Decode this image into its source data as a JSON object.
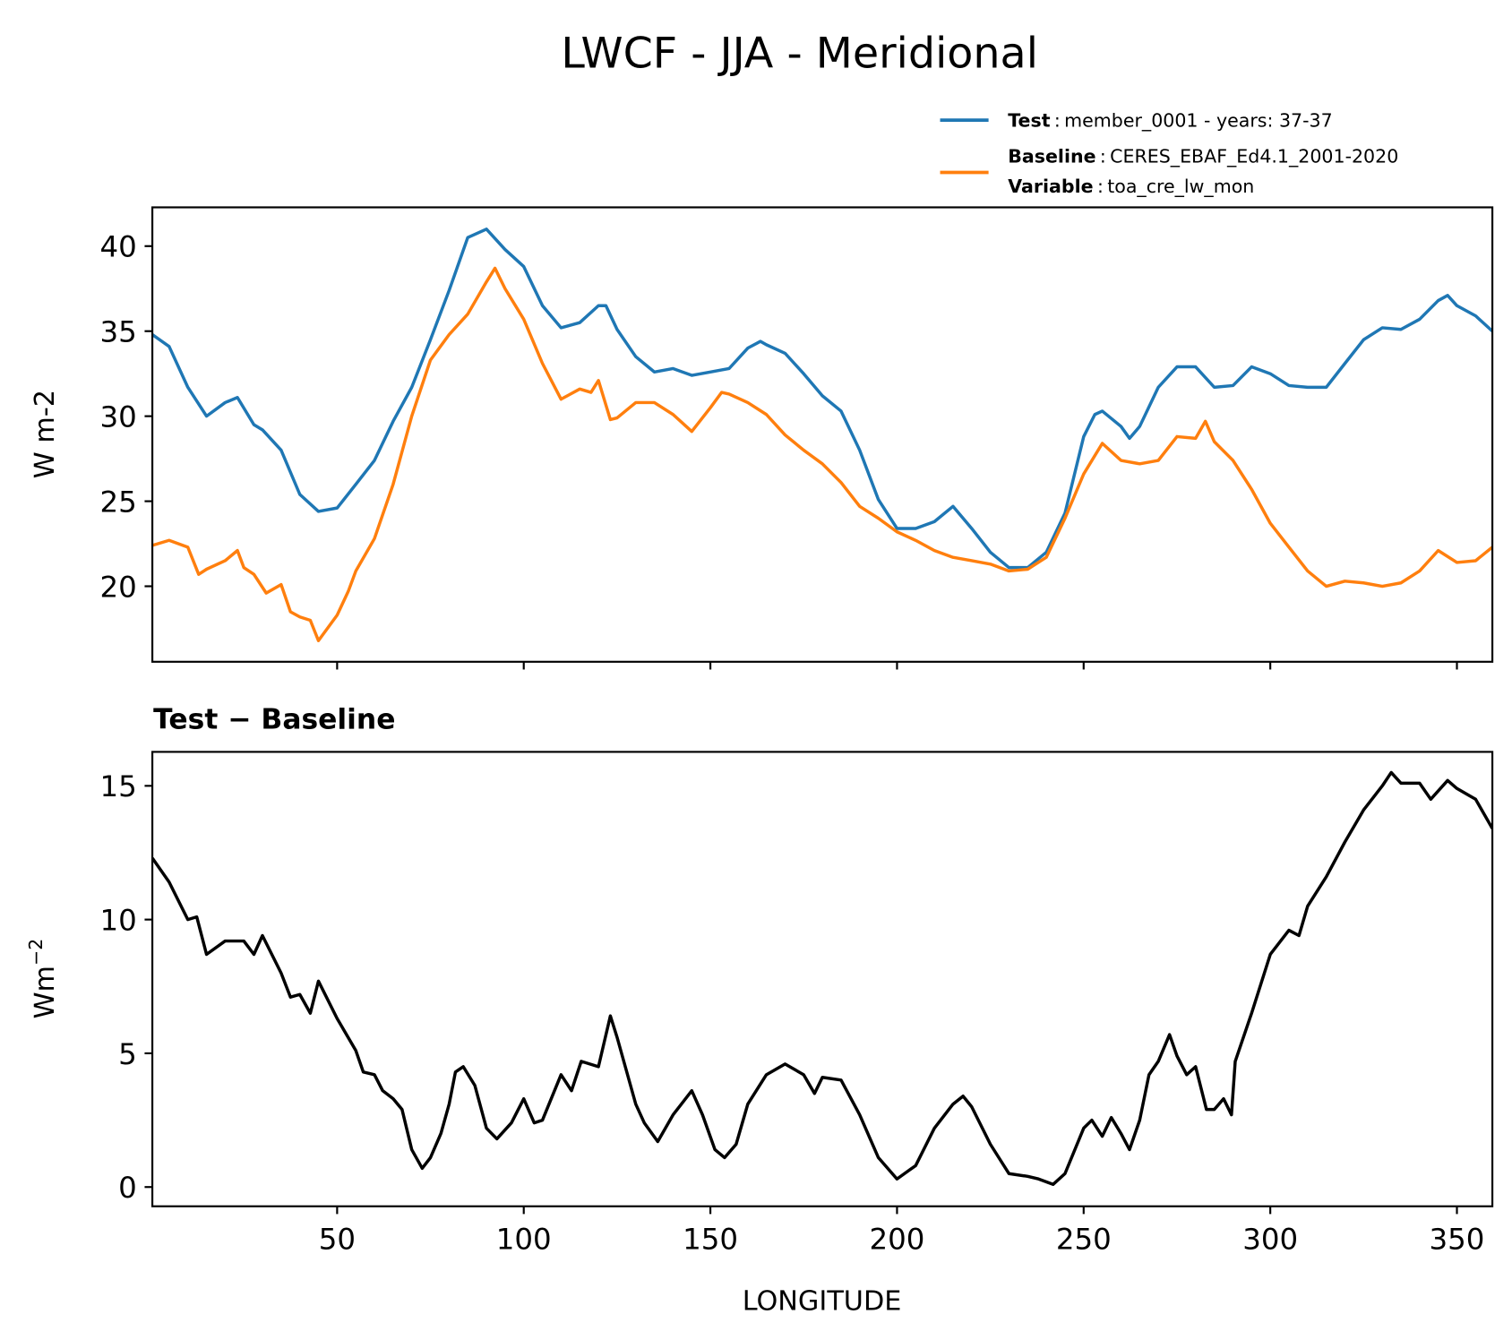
{
  "title": "LWCF - JJA - Meridional",
  "legend": {
    "test_key": "Test",
    "test_value": "member_0001 - years: 37-37",
    "baseline_key": "Baseline",
    "baseline_value": "CERES_EBAF_Ed4.1_2001-2020",
    "variable_key": "Variable",
    "variable_value": "toa_cre_lw_mon",
    "sep": ":"
  },
  "colors": {
    "test": "#1f77b4",
    "baseline": "#ff7f0e",
    "diff": "#000000"
  },
  "chart_data": [
    {
      "type": "line",
      "title": "",
      "xlabel": "",
      "ylabel": "W m-2",
      "xlim": [
        0.5,
        359.5
      ],
      "ylim": [
        15.56,
        42.28
      ],
      "xticks": [
        50,
        100,
        150,
        200,
        250,
        300,
        350
      ],
      "xtick_labels_shown": false,
      "yticks": [
        20,
        25,
        30,
        35,
        40
      ],
      "ytick_labels": [
        "20",
        "25",
        "30",
        "35",
        "40"
      ],
      "legend_position": "above-right",
      "series": [
        {
          "name": "Test",
          "color": "#1f77b4",
          "x": [
            0.5,
            5,
            10,
            15,
            20,
            23.3,
            27.7,
            30,
            35,
            40,
            45,
            50,
            55,
            60,
            65,
            70,
            75,
            80,
            85,
            90,
            95,
            100,
            105,
            110,
            115,
            120,
            122,
            125,
            130,
            135,
            140,
            145,
            150,
            155,
            160,
            163.4,
            165,
            170,
            175,
            180,
            185,
            190,
            195,
            200,
            205,
            210,
            215,
            220,
            225,
            230,
            235,
            240,
            245,
            250,
            253,
            255,
            260,
            262.3,
            265,
            270,
            275,
            280,
            285,
            290,
            295,
            300,
            305,
            310,
            315,
            320,
            325,
            330,
            335,
            340,
            345,
            347.5,
            350,
            355,
            359.5
          ],
          "values": [
            34.8,
            34.1,
            31.7,
            30.0,
            30.8,
            31.1,
            29.5,
            29.2,
            28.0,
            25.4,
            24.4,
            24.6,
            26.0,
            27.4,
            29.7,
            31.7,
            34.5,
            37.4,
            40.5,
            41.0,
            39.8,
            38.8,
            36.5,
            35.2,
            35.5,
            36.5,
            36.5,
            35.1,
            33.5,
            32.6,
            32.8,
            32.4,
            32.6,
            32.8,
            34.0,
            34.4,
            34.2,
            33.7,
            32.5,
            31.2,
            30.3,
            28.0,
            25.1,
            23.4,
            23.4,
            23.8,
            24.7,
            23.4,
            22.0,
            21.1,
            21.1,
            22.0,
            24.3,
            28.8,
            30.1,
            30.3,
            29.4,
            28.7,
            29.4,
            31.7,
            32.9,
            32.9,
            31.7,
            31.8,
            32.9,
            32.5,
            31.8,
            31.7,
            31.7,
            33.1,
            34.5,
            35.2,
            35.1,
            35.7,
            36.8,
            37.1,
            36.5,
            35.9,
            35.0
          ]
        },
        {
          "name": "Baseline",
          "color": "#ff7f0e",
          "x": [
            0.5,
            5,
            10,
            12.9,
            15,
            20,
            23.3,
            25,
            27.7,
            31,
            35,
            37.5,
            40,
            42.8,
            45,
            50,
            53,
            55,
            60,
            65,
            70,
            75,
            80,
            85,
            90,
            92.3,
            95,
            100,
            105,
            110,
            115,
            118,
            120,
            123.2,
            125,
            130,
            135,
            140,
            145,
            150,
            153,
            155,
            160,
            165,
            170,
            175,
            180,
            185,
            190,
            195,
            200,
            205,
            210,
            215,
            220,
            225,
            230,
            235,
            240,
            245,
            250,
            255,
            260,
            265,
            270,
            275,
            280,
            282.6,
            285,
            290,
            295,
            300,
            305,
            310,
            315,
            320,
            325,
            330,
            335,
            340,
            345,
            350,
            355,
            359.5
          ],
          "values": [
            22.4,
            22.7,
            22.3,
            20.7,
            21.0,
            21.5,
            22.1,
            21.1,
            20.7,
            19.6,
            20.1,
            18.5,
            18.2,
            18.0,
            16.8,
            18.3,
            19.7,
            20.9,
            22.8,
            26.0,
            30.0,
            33.3,
            34.8,
            36.0,
            37.9,
            38.7,
            37.5,
            35.7,
            33.1,
            31.0,
            31.6,
            31.4,
            32.1,
            29.8,
            29.9,
            30.8,
            30.8,
            30.1,
            29.1,
            30.5,
            31.4,
            31.3,
            30.8,
            30.1,
            28.9,
            28.0,
            27.2,
            26.1,
            24.7,
            24.0,
            23.2,
            22.7,
            22.1,
            21.7,
            21.5,
            21.3,
            20.9,
            21.0,
            21.7,
            24.0,
            26.6,
            28.4,
            27.4,
            27.2,
            27.4,
            28.8,
            28.7,
            29.7,
            28.5,
            27.4,
            25.7,
            23.7,
            22.3,
            20.9,
            20.0,
            20.3,
            20.2,
            20.0,
            20.2,
            20.9,
            22.1,
            21.4,
            21.5,
            22.3
          ]
        }
      ]
    },
    {
      "type": "line",
      "title": "Test − Baseline",
      "xlabel": "LONGITUDE",
      "ylabel_base": "Wm",
      "ylabel_sup": "−2",
      "xlim": [
        0.5,
        359.5
      ],
      "ylim": [
        -0.72,
        16.27
      ],
      "xticks": [
        50,
        100,
        150,
        200,
        250,
        300,
        350
      ],
      "xtick_labels": [
        "50",
        "100",
        "150",
        "200",
        "250",
        "300",
        "350"
      ],
      "yticks": [
        0,
        5,
        10,
        15
      ],
      "ytick_labels": [
        "0",
        "5",
        "10",
        "15"
      ],
      "series": [
        {
          "name": "Test - Baseline",
          "color": "#000000",
          "x": [
            0.5,
            5,
            10,
            12.4,
            15,
            20,
            25,
            27.7,
            30,
            35,
            37.5,
            40,
            42.8,
            45,
            50,
            55,
            57,
            60,
            62.2,
            65,
            67.4,
            70,
            72.8,
            75,
            77.8,
            80,
            81.7,
            83.8,
            86.9,
            90,
            92.8,
            96.7,
            100,
            102.8,
            105,
            110,
            112.8,
            115.4,
            120,
            123.2,
            125,
            130,
            132.3,
            135.9,
            140,
            145,
            147.9,
            151.2,
            153.8,
            156.9,
            160,
            165,
            170,
            175,
            177.9,
            180,
            185,
            190,
            195,
            200,
            205,
            210,
            215,
            217.7,
            220,
            225,
            230,
            235,
            237.9,
            241.8,
            245,
            250,
            252.2,
            255,
            257.4,
            260,
            262.3,
            265,
            267.5,
            270,
            273,
            275,
            277.6,
            280,
            282.9,
            285,
            287.5,
            289.6,
            290.6,
            295,
            300,
            305,
            307.7,
            310,
            315,
            320,
            325,
            330,
            332.4,
            335,
            340,
            343,
            347.5,
            350,
            355,
            359.5
          ],
          "values": [
            12.3,
            11.4,
            10.0,
            10.1,
            8.7,
            9.2,
            9.2,
            8.7,
            9.4,
            8.0,
            7.1,
            7.2,
            6.5,
            7.7,
            6.3,
            5.1,
            4.3,
            4.2,
            3.6,
            3.3,
            2.9,
            1.4,
            0.7,
            1.1,
            2.0,
            3.1,
            4.3,
            4.5,
            3.8,
            2.2,
            1.8,
            2.4,
            3.3,
            2.4,
            2.5,
            4.2,
            3.6,
            4.7,
            4.5,
            6.4,
            5.6,
            3.1,
            2.4,
            1.7,
            2.7,
            3.6,
            2.7,
            1.4,
            1.1,
            1.6,
            3.1,
            4.2,
            4.6,
            4.2,
            3.5,
            4.1,
            4.0,
            2.7,
            1.1,
            0.3,
            0.8,
            2.2,
            3.1,
            3.4,
            3.0,
            1.6,
            0.5,
            0.4,
            0.3,
            0.1,
            0.5,
            2.2,
            2.5,
            1.9,
            2.6,
            2.0,
            1.4,
            2.5,
            4.2,
            4.7,
            5.7,
            4.9,
            4.2,
            4.5,
            2.9,
            2.9,
            3.3,
            2.7,
            4.7,
            6.5,
            8.7,
            9.6,
            9.4,
            10.5,
            11.6,
            12.9,
            14.1,
            15.0,
            15.5,
            15.1,
            15.1,
            14.5,
            15.2,
            14.9,
            14.5,
            13.4
          ]
        }
      ]
    }
  ]
}
